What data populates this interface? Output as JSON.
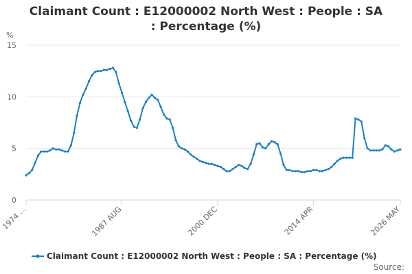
{
  "chart_data": {
    "type": "line",
    "title": "Claimant Count : E12000002 North West : People : SA : Percentage (%)",
    "y_label": "%",
    "source": "Source:",
    "categories": [
      "1974 ...",
      null,
      null,
      null,
      null,
      null,
      null,
      null,
      null,
      null,
      null,
      null,
      null,
      null,
      null,
      null,
      null,
      null,
      null,
      null,
      null,
      null,
      null,
      null,
      null,
      null,
      null,
      null,
      null,
      null,
      null,
      null,
      "1987 AUG",
      null,
      null,
      null,
      null,
      null,
      null,
      null,
      null,
      null,
      null,
      null,
      null,
      null,
      null,
      null,
      null,
      null,
      null,
      null,
      null,
      null,
      null,
      null,
      null,
      null,
      null,
      null,
      null,
      null,
      null,
      null,
      "2000 DEC",
      null,
      null,
      null,
      null,
      null,
      null,
      null,
      null,
      null,
      null,
      null,
      null,
      null,
      null,
      null,
      null,
      null,
      null,
      null,
      null,
      null,
      null,
      null,
      null,
      null,
      null,
      null,
      null,
      null,
      null,
      null,
      "2014 APR",
      null,
      null,
      null,
      null,
      null,
      null,
      null,
      null,
      null,
      null,
      null,
      null,
      null,
      null,
      null,
      null,
      null,
      null,
      null,
      null,
      null,
      null,
      null,
      null,
      null,
      null,
      null,
      null,
      "2026 MAY"
    ],
    "series": [
      {
        "name": "Claimant Count : E12000002 North West : People : SA : Percentage (%)",
        "color": "#1b7fc0",
        "values": [
          2.4,
          2.6,
          2.9,
          3.6,
          4.3,
          4.7,
          4.7,
          4.7,
          4.8,
          5.0,
          4.9,
          4.9,
          4.8,
          4.7,
          4.7,
          5.3,
          6.5,
          8.2,
          9.4,
          10.2,
          10.8,
          11.5,
          12.1,
          12.4,
          12.5,
          12.5,
          12.6,
          12.6,
          12.7,
          12.8,
          12.4,
          11.3,
          10.4,
          9.5,
          8.6,
          7.7,
          7.1,
          7.0,
          7.8,
          8.9,
          9.5,
          9.9,
          10.2,
          9.9,
          9.7,
          9.0,
          8.3,
          7.9,
          7.8,
          7.0,
          5.8,
          5.2,
          5.0,
          4.9,
          4.7,
          4.4,
          4.2,
          4.0,
          3.8,
          3.7,
          3.6,
          3.5,
          3.5,
          3.4,
          3.3,
          3.2,
          3.0,
          2.8,
          2.8,
          3.0,
          3.2,
          3.4,
          3.3,
          3.1,
          3.0,
          3.5,
          4.4,
          5.4,
          5.5,
          5.1,
          5.0,
          5.4,
          5.7,
          5.6,
          5.4,
          4.5,
          3.4,
          2.9,
          2.9,
          2.8,
          2.8,
          2.8,
          2.7,
          2.7,
          2.8,
          2.8,
          2.9,
          2.9,
          2.8,
          2.8,
          2.9,
          3.0,
          3.2,
          3.5,
          3.8,
          4.0,
          4.1,
          4.1,
          4.1,
          4.1,
          7.9,
          7.8,
          7.6,
          6.0,
          5.0,
          4.8,
          4.8,
          4.8,
          4.8,
          4.9,
          5.3,
          5.2,
          4.9,
          4.7,
          4.8,
          4.9
        ]
      }
    ],
    "ylim": [
      0,
      15
    ],
    "yticks": [
      0,
      5,
      10,
      15
    ],
    "grid": true
  }
}
